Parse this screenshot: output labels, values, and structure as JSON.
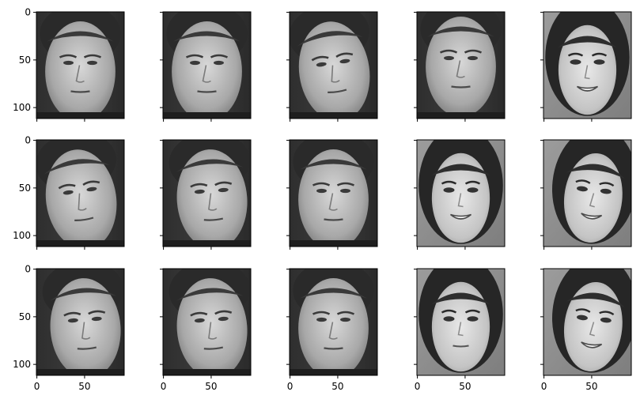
{
  "figure": {
    "grid": {
      "rows": 3,
      "cols": 5
    },
    "panel_image_size": {
      "width": 92,
      "height": 112
    },
    "x_ticks": [
      {
        "value": 0,
        "label": "0"
      },
      {
        "value": 50,
        "label": "50"
      }
    ],
    "y_ticks": [
      {
        "value": 0,
        "label": "0"
      },
      {
        "value": 50,
        "label": "50"
      },
      {
        "value": 100,
        "label": "100"
      }
    ],
    "shared_axes": {
      "x": "bottom-row-labels-only",
      "y": "left-column-labels-only"
    },
    "colormap": "gray"
  },
  "panels": [
    {
      "row": 0,
      "col": 0,
      "subject": "face-a",
      "pose": "frontal"
    },
    {
      "row": 0,
      "col": 1,
      "subject": "face-a",
      "pose": "frontal"
    },
    {
      "row": 0,
      "col": 2,
      "subject": "face-a",
      "pose": "tilted"
    },
    {
      "row": 0,
      "col": 3,
      "subject": "face-a",
      "pose": "chin-up"
    },
    {
      "row": 0,
      "col": 4,
      "subject": "face-b",
      "pose": "smiling"
    },
    {
      "row": 1,
      "col": 0,
      "subject": "face-a",
      "pose": "tilted"
    },
    {
      "row": 1,
      "col": 1,
      "subject": "face-a",
      "pose": "turned"
    },
    {
      "row": 1,
      "col": 2,
      "subject": "face-a",
      "pose": "frontal"
    },
    {
      "row": 1,
      "col": 3,
      "subject": "face-b",
      "pose": "smiling"
    },
    {
      "row": 1,
      "col": 4,
      "subject": "face-b",
      "pose": "smiling-turned"
    },
    {
      "row": 2,
      "col": 0,
      "subject": "face-a",
      "pose": "turned"
    },
    {
      "row": 2,
      "col": 1,
      "subject": "face-a",
      "pose": "turned"
    },
    {
      "row": 2,
      "col": 2,
      "subject": "face-a",
      "pose": "frontal"
    },
    {
      "row": 2,
      "col": 3,
      "subject": "face-b",
      "pose": "neutral"
    },
    {
      "row": 2,
      "col": 4,
      "subject": "face-b",
      "pose": "smiling-turned"
    }
  ],
  "colors": {
    "background": "#ffffff",
    "axis": "#000000"
  }
}
